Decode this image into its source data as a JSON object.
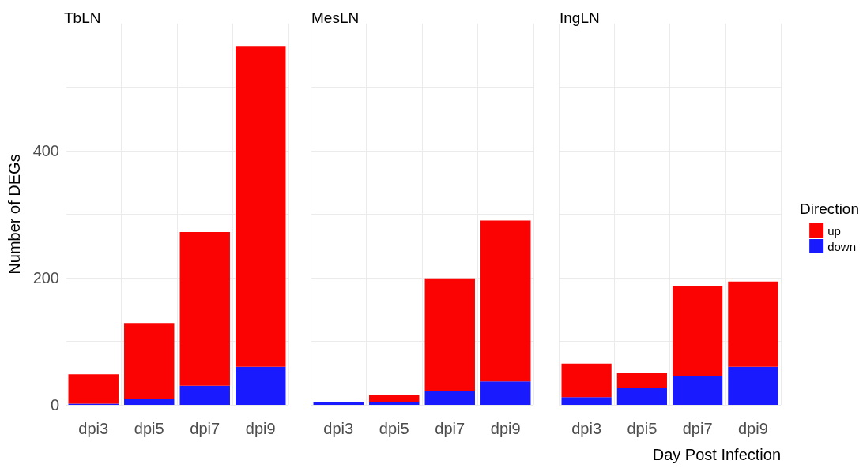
{
  "chart_data": [
    {
      "type": "bar",
      "title": "TbLN",
      "ylabel": "Number of DEGs",
      "categories": [
        "dpi3",
        "dpi5",
        "dpi7",
        "dpi9"
      ],
      "stacked": true,
      "series": [
        {
          "color": "#1a1aff",
          "values": [
            2,
            10,
            30,
            60
          ]
        },
        {
          "color": "#fc0303",
          "values": [
            46,
            119,
            242,
            505
          ]
        }
      ],
      "ylim": [
        0,
        600
      ],
      "yticks": [
        0,
        {
          "value": 100,
          "label": null
        },
        200,
        {
          "value": 300,
          "label": null
        },
        400,
        {
          "value": 500,
          "label": null
        }
      ],
      "grid": true,
      "legend": false
    },
    {
      "type": "bar",
      "title": "MesLN",
      "categories": [
        "dpi3",
        "dpi5",
        "dpi7",
        "dpi9"
      ],
      "stacked": true,
      "series": [
        {
          "color": "#1a1aff",
          "values": [
            4,
            4,
            22,
            37
          ]
        },
        {
          "color": "#fc0303",
          "values": [
            0,
            12,
            177,
            253
          ]
        }
      ],
      "ylim": [
        0,
        600
      ],
      "yticks": [
        0,
        {
          "value": 100,
          "label": null
        },
        200,
        {
          "value": 300,
          "label": null
        },
        400,
        {
          "value": 500,
          "label": null
        }
      ],
      "grid": true,
      "legend": false,
      "tick_labels": "x"
    },
    {
      "type": "bar",
      "title": "IngLN",
      "xlabel": "Day Post Infection",
      "legend_title": "Direction",
      "categories": [
        "dpi3",
        "dpi5",
        "dpi7",
        "dpi9"
      ],
      "stacked": true,
      "series": [
        {
          "name": "down",
          "color": "#1a1aff",
          "values": [
            12,
            27,
            46,
            60
          ]
        },
        {
          "name": "up",
          "color": "#fc0303",
          "values": [
            53,
            23,
            141,
            134
          ]
        }
      ],
      "ylim": [
        0,
        600
      ],
      "yticks": [
        0,
        {
          "value": 100,
          "label": null
        },
        200,
        {
          "value": 300,
          "label": null
        },
        400,
        {
          "value": 500,
          "label": null
        }
      ],
      "grid": true,
      "legend": "right",
      "tick_labels": "x"
    }
  ]
}
